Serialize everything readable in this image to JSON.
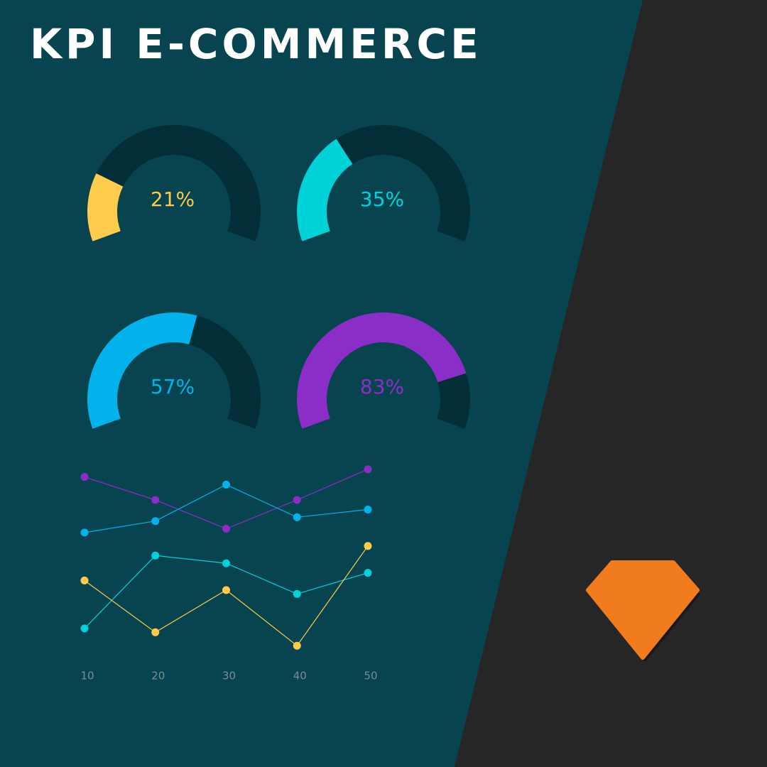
{
  "title": "KPI E-COMMERCE",
  "chart_data": [
    {
      "type": "gauge",
      "values": [
        21
      ],
      "value_labels": [
        "21%"
      ],
      "color": "#fecb4d",
      "ylim": [
        0,
        100
      ]
    },
    {
      "type": "gauge",
      "values": [
        35
      ],
      "value_labels": [
        "35%"
      ],
      "color": "#00d3d8",
      "ylim": [
        0,
        100
      ]
    },
    {
      "type": "gauge",
      "values": [
        57
      ],
      "value_labels": [
        "57%"
      ],
      "color": "#02b3eb",
      "ylim": [
        0,
        100
      ]
    },
    {
      "type": "gauge",
      "values": [
        83
      ],
      "value_labels": [
        "83%"
      ],
      "color": "#8b2ec7",
      "ylim": [
        0,
        100
      ]
    },
    {
      "type": "line",
      "x": [
        10,
        20,
        30,
        40,
        50
      ],
      "xlim": [
        10,
        50
      ],
      "xticks": [
        10,
        20,
        30,
        40,
        50
      ],
      "ylim": [
        0,
        100
      ],
      "series": [
        {
          "color": "#8b2ec7",
          "values": [
            92,
            80,
            65,
            80,
            96
          ]
        },
        {
          "color": "#02b3eb",
          "values": [
            63,
            69,
            88,
            71,
            75
          ]
        },
        {
          "color": "#00d3d8",
          "values": [
            13,
            51,
            47,
            31,
            42
          ]
        },
        {
          "color": "#fecb4d",
          "values": [
            38,
            11,
            33,
            4,
            56
          ]
        }
      ]
    }
  ]
}
